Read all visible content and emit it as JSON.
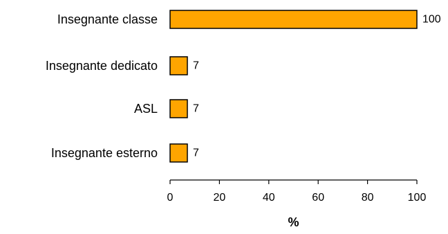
{
  "chart_data": {
    "type": "bar",
    "orientation": "horizontal",
    "categories": [
      "Insegnante classe",
      "Insegnante dedicato",
      "ASL",
      "Insegnante esterno"
    ],
    "values": [
      100,
      7,
      7,
      7
    ],
    "data_labels": [
      "100",
      "7",
      "7",
      "7"
    ],
    "xlabel": "%",
    "xlim": [
      0,
      100
    ],
    "xticks": [
      0,
      20,
      40,
      60,
      80,
      100
    ],
    "xtick_labels": [
      "0",
      "20",
      "40",
      "60",
      "80",
      "100"
    ],
    "grid": false,
    "bar_color": "#FFA500",
    "bar_edge_color": "#000000"
  }
}
